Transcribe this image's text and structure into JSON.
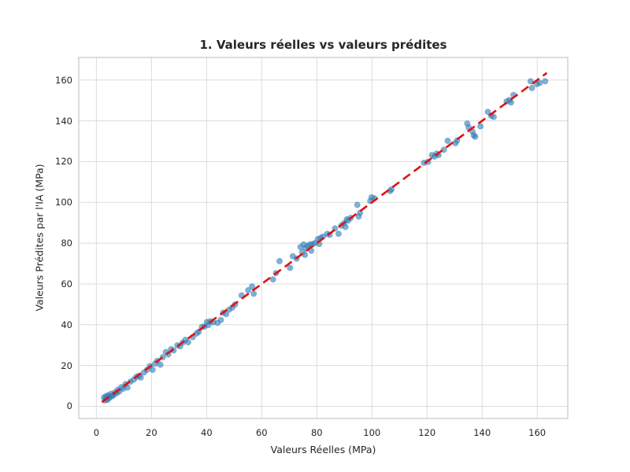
{
  "chart_data": {
    "type": "scatter",
    "title": "1. Valeurs réelles vs valeurs prédites",
    "xlabel": "Valeurs Réelles (MPa)",
    "ylabel": "Valeurs Prédites par l'IA (MPa)",
    "xlim": [
      -6.4,
      171.1
    ],
    "ylim": [
      -6.0,
      171.1
    ],
    "x_ticks": [
      0,
      20,
      40,
      60,
      80,
      100,
      120,
      140,
      160
    ],
    "y_ticks": [
      0,
      20,
      40,
      60,
      80,
      100,
      120,
      140,
      160
    ],
    "grid": true,
    "legend": "none",
    "series_name": "predictions",
    "points": [
      [
        2.8,
        4.3
      ],
      [
        3.1,
        2.9
      ],
      [
        3.5,
        4.9
      ],
      [
        3.9,
        3.1
      ],
      [
        4.2,
        5.4
      ],
      [
        4.5,
        3.8
      ],
      [
        4.9,
        4.6
      ],
      [
        5.3,
        6.1
      ],
      [
        5.8,
        4.9
      ],
      [
        6.2,
        5.6
      ],
      [
        6.8,
        6.9
      ],
      [
        7.3,
        6.4
      ],
      [
        7.8,
        8.1
      ],
      [
        8.3,
        7.2
      ],
      [
        9.1,
        9.4
      ],
      [
        9.7,
        8.6
      ],
      [
        10.6,
        10.9
      ],
      [
        11.3,
        9.2
      ],
      [
        12.4,
        12.1
      ],
      [
        13.6,
        13.1
      ],
      [
        14.5,
        14.4
      ],
      [
        15.4,
        15.0
      ],
      [
        16.1,
        14.1
      ],
      [
        17.3,
        16.6
      ],
      [
        18.4,
        17.9
      ],
      [
        19.4,
        19.7
      ],
      [
        20.4,
        17.9
      ],
      [
        21.3,
        20.9
      ],
      [
        22.1,
        22.3
      ],
      [
        23.2,
        20.4
      ],
      [
        24.1,
        24.1
      ],
      [
        25.2,
        26.6
      ],
      [
        26.1,
        25.4
      ],
      [
        27.1,
        28.0
      ],
      [
        28.0,
        27.4
      ],
      [
        29.4,
        29.9
      ],
      [
        30.4,
        29.4
      ],
      [
        31.3,
        31.2
      ],
      [
        32.3,
        32.6
      ],
      [
        33.3,
        31.4
      ],
      [
        35.0,
        33.9
      ],
      [
        36.4,
        35.7
      ],
      [
        37.2,
        36.6
      ],
      [
        38.3,
        38.9
      ],
      [
        39.2,
        39.1
      ],
      [
        40.1,
        41.3
      ],
      [
        40.6,
        39.8
      ],
      [
        41.4,
        41.7
      ],
      [
        42.4,
        41.2
      ],
      [
        44.0,
        40.9
      ],
      [
        45.2,
        42.3
      ],
      [
        46.0,
        45.9
      ],
      [
        47.1,
        45.2
      ],
      [
        48.2,
        47.4
      ],
      [
        49.3,
        48.4
      ],
      [
        50.3,
        49.9
      ],
      [
        52.7,
        54.4
      ],
      [
        55.1,
        56.9
      ],
      [
        56.5,
        58.8
      ],
      [
        57.1,
        55.2
      ],
      [
        64.1,
        62.2
      ],
      [
        65.2,
        65.3
      ],
      [
        66.5,
        71.2
      ],
      [
        70.3,
        67.9
      ],
      [
        71.3,
        73.6
      ],
      [
        72.7,
        72.4
      ],
      [
        74.1,
        78.1
      ],
      [
        74.7,
        75.6
      ],
      [
        75.2,
        79.4
      ],
      [
        75.7,
        74.3
      ],
      [
        76.1,
        77.4
      ],
      [
        76.6,
        78.7
      ],
      [
        77.5,
        79.4
      ],
      [
        78.0,
        76.3
      ],
      [
        78.5,
        79.5
      ],
      [
        79.4,
        80.1
      ],
      [
        80.4,
        82.0
      ],
      [
        80.9,
        79.6
      ],
      [
        81.4,
        82.6
      ],
      [
        82.3,
        83.3
      ],
      [
        83.8,
        84.6
      ],
      [
        84.7,
        84.1
      ],
      [
        86.6,
        87.2
      ],
      [
        87.9,
        84.6
      ],
      [
        88.9,
        88.6
      ],
      [
        89.9,
        89.8
      ],
      [
        90.4,
        87.9
      ],
      [
        90.9,
        91.7
      ],
      [
        91.4,
        91.1
      ],
      [
        92.3,
        92.4
      ],
      [
        94.7,
        98.8
      ],
      [
        95.2,
        93.1
      ],
      [
        95.7,
        94.9
      ],
      [
        99.4,
        100.7
      ],
      [
        99.9,
        102.5
      ],
      [
        100.9,
        102.0
      ],
      [
        106.6,
        105.6
      ],
      [
        107.1,
        106.4
      ],
      [
        118.9,
        119.4
      ],
      [
        120.4,
        119.9
      ],
      [
        121.8,
        123.2
      ],
      [
        122.7,
        122.5
      ],
      [
        123.5,
        123.9
      ],
      [
        124.2,
        123.2
      ],
      [
        126.1,
        125.8
      ],
      [
        127.5,
        130.2
      ],
      [
        130.3,
        129.0
      ],
      [
        130.9,
        130.3
      ],
      [
        134.6,
        138.7
      ],
      [
        135.1,
        136.8
      ],
      [
        136.5,
        134.8
      ],
      [
        137.0,
        132.9
      ],
      [
        137.5,
        132.2
      ],
      [
        139.4,
        137.3
      ],
      [
        142.1,
        144.4
      ],
      [
        143.3,
        142.5
      ],
      [
        144.2,
        141.9
      ],
      [
        148.9,
        149.5
      ],
      [
        149.9,
        150.2
      ],
      [
        150.5,
        149.0
      ],
      [
        151.4,
        152.7
      ],
      [
        157.6,
        159.4
      ],
      [
        158.1,
        156.1
      ],
      [
        159.9,
        158.0
      ],
      [
        160.9,
        158.6
      ],
      [
        162.9,
        159.4
      ]
    ],
    "identity_line": {
      "x": [
        2.0,
        163.5
      ],
      "y": [
        2.0,
        163.5
      ],
      "style": "dashed"
    },
    "colors": {
      "point_fill": "#2f7cb5",
      "point_fill_opacity": 0.6,
      "point_edge": "#2f7cb5",
      "line": "#e01212",
      "grid": "#dcdcdc",
      "frame": "#c6c6c6",
      "text": "#262626",
      "background": "#ffffff"
    }
  }
}
